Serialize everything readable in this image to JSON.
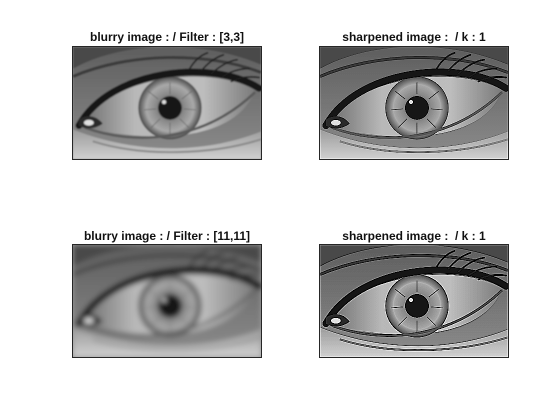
{
  "figure": {
    "panels": [
      {
        "title": "blurry image : / Filter : [3,3]",
        "image": "eye-closeup-grayscale-slight-blur"
      },
      {
        "title": "sharpened image :  / k : 1",
        "image": "eye-closeup-grayscale-sharpened"
      },
      {
        "title": "blurry image : / Filter : [11,11]",
        "image": "eye-closeup-grayscale-strong-blur"
      },
      {
        "title": "sharpened image :  / k : 1",
        "image": "eye-closeup-grayscale-sharpened-strong"
      }
    ]
  }
}
